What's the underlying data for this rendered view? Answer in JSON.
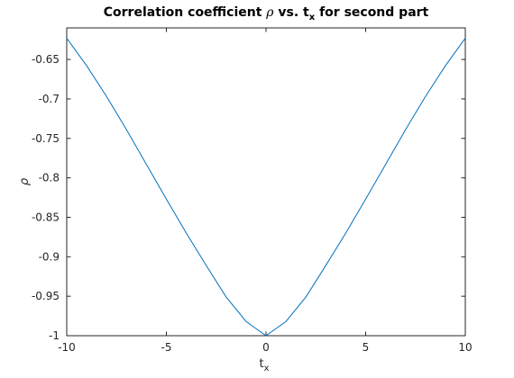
{
  "chart_data": {
    "type": "line",
    "title_main": "Correlation coefficient ",
    "title_symbol": "ρ",
    "title_mid": " vs. t",
    "title_sub": "x",
    "title_end": " for second part",
    "xlabel_main": "t",
    "xlabel_sub": "x",
    "ylabel": "ρ",
    "xlim": [
      -10,
      10
    ],
    "ylim": [
      -1,
      -0.61
    ],
    "xticks": [
      -10,
      -5,
      0,
      5,
      10
    ],
    "xtick_labels": [
      "-10",
      "-5",
      "0",
      "5",
      "10"
    ],
    "yticks": [
      -1,
      -0.95,
      -0.9,
      -0.85,
      -0.8,
      -0.75,
      -0.7,
      -0.65
    ],
    "ytick_labels": [
      "-1",
      "-0.95",
      "-0.9",
      "-0.85",
      "-0.8",
      "-0.75",
      "-0.7",
      "-0.65"
    ],
    "grid": false,
    "series": [
      {
        "color": "#0072BD",
        "x": [
          -10,
          -9,
          -8,
          -7,
          -6,
          -5,
          -4,
          -3,
          -2,
          -1,
          -0.5,
          0,
          0.5,
          1,
          2,
          3,
          4,
          5,
          6,
          7,
          8,
          9,
          10
        ],
        "y": [
          -0.623,
          -0.658,
          -0.697,
          -0.739,
          -0.783,
          -0.827,
          -0.87,
          -0.911,
          -0.951,
          -0.982,
          -0.991,
          -1.0,
          -0.991,
          -0.982,
          -0.951,
          -0.911,
          -0.87,
          -0.827,
          -0.783,
          -0.739,
          -0.697,
          -0.658,
          -0.623
        ]
      }
    ]
  }
}
